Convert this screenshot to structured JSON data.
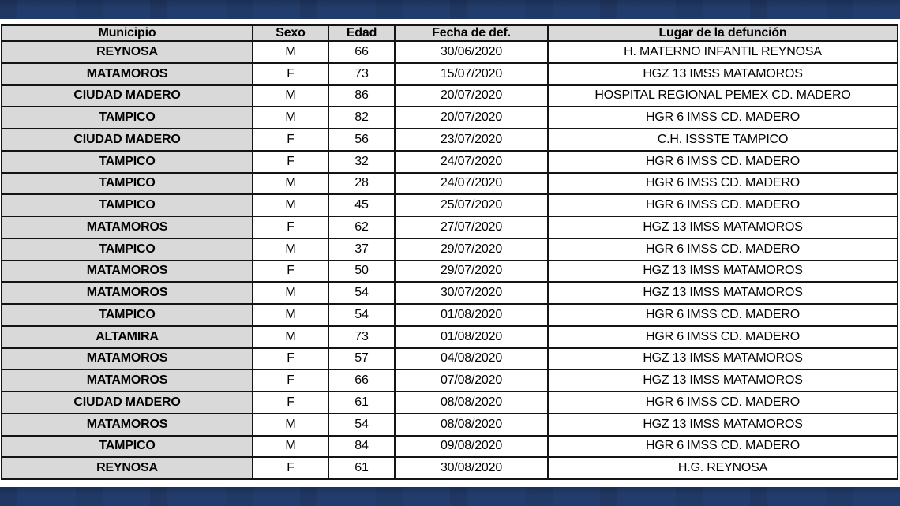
{
  "theme": {
    "banner_color": "#223D6D",
    "cell_gray": "#D9D9D9",
    "border_color": "#141414"
  },
  "table": {
    "columns": [
      {
        "key": "municipio",
        "label": "Municipio"
      },
      {
        "key": "sexo",
        "label": "Sexo"
      },
      {
        "key": "edad",
        "label": "Edad"
      },
      {
        "key": "fecha",
        "label": "Fecha de def."
      },
      {
        "key": "lugar",
        "label": "Lugar de la defunción"
      }
    ],
    "rows": [
      {
        "municipio": "REYNOSA",
        "sexo": "M",
        "edad": "66",
        "fecha": "30/06/2020",
        "lugar": "H. MATERNO INFANTIL REYNOSA"
      },
      {
        "municipio": "MATAMOROS",
        "sexo": "F",
        "edad": "73",
        "fecha": "15/07/2020",
        "lugar": "HGZ 13 IMSS MATAMOROS"
      },
      {
        "municipio": "CIUDAD MADERO",
        "sexo": "M",
        "edad": "86",
        "fecha": "20/07/2020",
        "lugar": "HOSPITAL REGIONAL PEMEX CD. MADERO"
      },
      {
        "municipio": "TAMPICO",
        "sexo": "M",
        "edad": "82",
        "fecha": "20/07/2020",
        "lugar": "HGR 6 IMSS CD. MADERO"
      },
      {
        "municipio": "CIUDAD MADERO",
        "sexo": "F",
        "edad": "56",
        "fecha": "23/07/2020",
        "lugar": "C.H. ISSSTE TAMPICO"
      },
      {
        "municipio": "TAMPICO",
        "sexo": "F",
        "edad": "32",
        "fecha": "24/07/2020",
        "lugar": "HGR 6 IMSS CD. MADERO"
      },
      {
        "municipio": "TAMPICO",
        "sexo": "M",
        "edad": "28",
        "fecha": "24/07/2020",
        "lugar": "HGR 6 IMSS CD. MADERO"
      },
      {
        "municipio": "TAMPICO",
        "sexo": "M",
        "edad": "45",
        "fecha": "25/07/2020",
        "lugar": "HGR 6 IMSS CD. MADERO"
      },
      {
        "municipio": "MATAMOROS",
        "sexo": "F",
        "edad": "62",
        "fecha": "27/07/2020",
        "lugar": "HGZ 13 IMSS MATAMOROS"
      },
      {
        "municipio": "TAMPICO",
        "sexo": "M",
        "edad": "37",
        "fecha": "29/07/2020",
        "lugar": "HGR 6 IMSS CD. MADERO"
      },
      {
        "municipio": "MATAMOROS",
        "sexo": "F",
        "edad": "50",
        "fecha": "29/07/2020",
        "lugar": "HGZ 13 IMSS MATAMOROS"
      },
      {
        "municipio": "MATAMOROS",
        "sexo": "M",
        "edad": "54",
        "fecha": "30/07/2020",
        "lugar": "HGZ 13 IMSS MATAMOROS"
      },
      {
        "municipio": "TAMPICO",
        "sexo": "M",
        "edad": "54",
        "fecha": "01/08/2020",
        "lugar": "HGR 6 IMSS CD. MADERO"
      },
      {
        "municipio": "ALTAMIRA",
        "sexo": "M",
        "edad": "73",
        "fecha": "01/08/2020",
        "lugar": "HGR 6 IMSS CD. MADERO"
      },
      {
        "municipio": "MATAMOROS",
        "sexo": "F",
        "edad": "57",
        "fecha": "04/08/2020",
        "lugar": "HGZ 13 IMSS MATAMOROS"
      },
      {
        "municipio": "MATAMOROS",
        "sexo": "F",
        "edad": "66",
        "fecha": "07/08/2020",
        "lugar": "HGZ 13 IMSS MATAMOROS"
      },
      {
        "municipio": "CIUDAD MADERO",
        "sexo": "F",
        "edad": "61",
        "fecha": "08/08/2020",
        "lugar": "HGR 6 IMSS CD. MADERO"
      },
      {
        "municipio": "MATAMOROS",
        "sexo": "M",
        "edad": "54",
        "fecha": "08/08/2020",
        "lugar": "HGZ 13 IMSS MATAMOROS"
      },
      {
        "municipio": "TAMPICO",
        "sexo": "M",
        "edad": "84",
        "fecha": "09/08/2020",
        "lugar": "HGR 6 IMSS CD. MADERO"
      },
      {
        "municipio": "REYNOSA",
        "sexo": "F",
        "edad": "61",
        "fecha": "30/08/2020",
        "lugar": "H.G. REYNOSA"
      }
    ]
  }
}
